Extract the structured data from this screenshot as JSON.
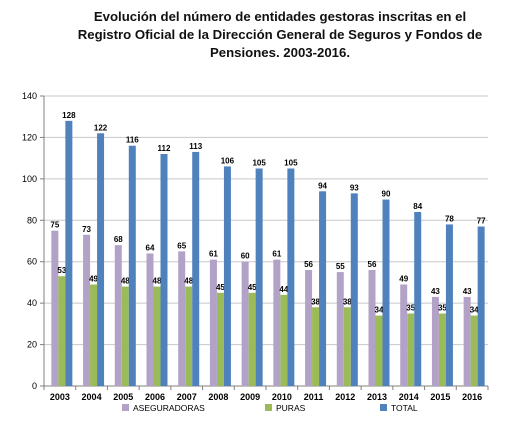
{
  "chart_data": {
    "type": "bar",
    "title_lines": [
      "Evolución del número de entidades gestoras inscritas en el",
      "Registro Oficial de la Dirección General de Seguros y Fondos de",
      "Pensiones. 2003-2016."
    ],
    "categories": [
      "2003",
      "2004",
      "2005",
      "2006",
      "2007",
      "2008",
      "2009",
      "2010",
      "2011",
      "2012",
      "2013",
      "2014",
      "2015",
      "2016"
    ],
    "series": [
      {
        "name": "ASEGURADORAS",
        "color": "#b3a2c7",
        "values": [
          75,
          73,
          68,
          64,
          65,
          61,
          60,
          61,
          56,
          55,
          56,
          49,
          43,
          43
        ]
      },
      {
        "name": "PURAS",
        "color": "#9bbb59",
        "values": [
          53,
          49,
          48,
          48,
          48,
          45,
          45,
          44,
          38,
          38,
          34,
          35,
          35,
          34
        ]
      },
      {
        "name": "TOTAL",
        "color": "#4f81bd",
        "values": [
          128,
          122,
          116,
          112,
          113,
          106,
          105,
          105,
          94,
          93,
          90,
          84,
          78,
          77
        ]
      }
    ],
    "ylim": [
      0,
      140
    ],
    "yticks": [
      0,
      20,
      40,
      60,
      80,
      100,
      120,
      140
    ],
    "grid": true,
    "legend_position": "bottom"
  }
}
